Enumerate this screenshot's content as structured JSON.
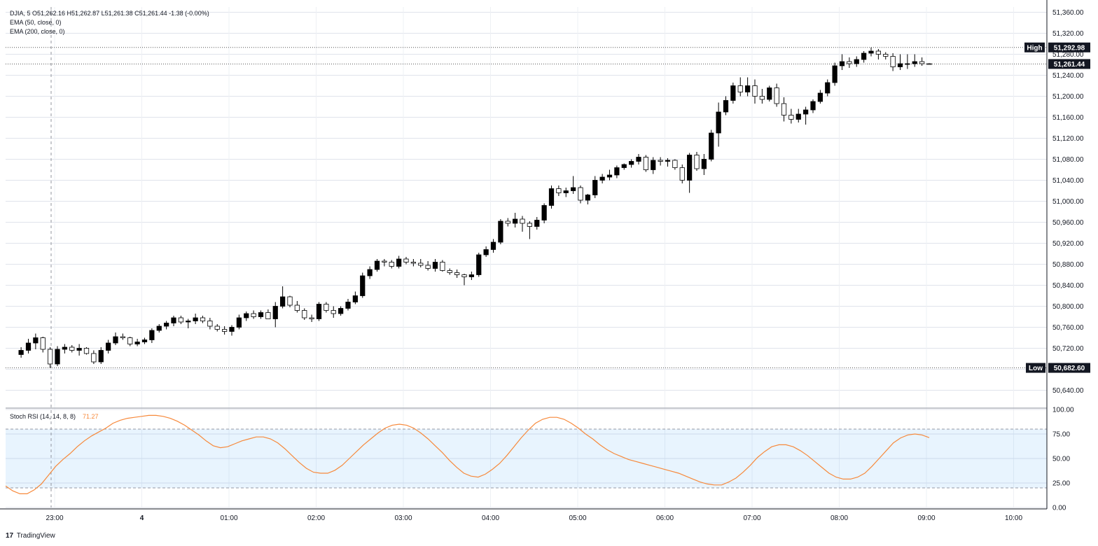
{
  "legend": {
    "symbol_line": "DJIA, 5  O51,262.16  H51,262.87  L51,261.38  C51,261.44  -1.38 (-0.00%)",
    "ema50": "EMA (50, close, 0)",
    "ema200": "EMA (200, close, 0)"
  },
  "branding": {
    "logo": "17",
    "name": "TradingView"
  },
  "chart_data": [
    {
      "type": "candlestick",
      "title": "DJIA, 5",
      "ylim": [
        50610,
        51370
      ],
      "yticks": [
        "51,360.00",
        "51,320.00",
        "51,280.00",
        "51,240.00",
        "51,200.00",
        "51,160.00",
        "51,120.00",
        "51,080.00",
        "51,040.00",
        "51,000.00",
        "50,960.00",
        "50,920.00",
        "50,880.00",
        "50,840.00",
        "50,800.00",
        "50,760.00",
        "50,720.00",
        "50,680.00",
        "50,640.00"
      ],
      "xticks": [
        "23:00",
        "4",
        "01:00",
        "02:00",
        "03:00",
        "04:00",
        "05:00",
        "06:00",
        "07:00",
        "08:00",
        "09:00",
        "10:00"
      ],
      "high_label": "High",
      "high_value": "51,292.98",
      "last_value": "51,261.44",
      "low_label": "Low",
      "low_value": "50,682.60",
      "ohlc": [
        [
          50708,
          50722,
          50702,
          50716
        ],
        [
          50716,
          50738,
          50710,
          50730
        ],
        [
          50730,
          50748,
          50718,
          50740
        ],
        [
          50740,
          50742,
          50712,
          50718
        ],
        [
          50718,
          50722,
          50682,
          50690
        ],
        [
          50690,
          50724,
          50686,
          50718
        ],
        [
          50718,
          50728,
          50710,
          50722
        ],
        [
          50722,
          50726,
          50712,
          50716
        ],
        [
          50716,
          50728,
          50706,
          50720
        ],
        [
          50720,
          50722,
          50708,
          50710
        ],
        [
          50710,
          50716,
          50690,
          50694
        ],
        [
          50694,
          50722,
          50690,
          50716
        ],
        [
          50716,
          50736,
          50710,
          50730
        ],
        [
          50730,
          50750,
          50726,
          50742
        ],
        [
          50742,
          50748,
          50736,
          50740
        ],
        [
          50740,
          50742,
          50724,
          50728
        ],
        [
          50728,
          50738,
          50724,
          50732
        ],
        [
          50732,
          50740,
          50728,
          50736
        ],
        [
          50736,
          50758,
          50730,
          50754
        ],
        [
          50754,
          50766,
          50750,
          50762
        ],
        [
          50762,
          50772,
          50756,
          50768
        ],
        [
          50768,
          50782,
          50762,
          50778
        ],
        [
          50778,
          50782,
          50766,
          50770
        ],
        [
          50770,
          50776,
          50758,
          50772
        ],
        [
          50772,
          50786,
          50766,
          50778
        ],
        [
          50778,
          50782,
          50768,
          50772
        ],
        [
          50772,
          50778,
          50756,
          50762
        ],
        [
          50762,
          50766,
          50752,
          50756
        ],
        [
          50756,
          50762,
          50746,
          50752
        ],
        [
          50752,
          50764,
          50744,
          50760
        ],
        [
          50760,
          50784,
          50756,
          50778
        ],
        [
          50778,
          50790,
          50772,
          50786
        ],
        [
          50786,
          50792,
          50776,
          50780
        ],
        [
          50780,
          50792,
          50776,
          50788
        ],
        [
          50788,
          50794,
          50782,
          50776
        ],
        [
          50776,
          50808,
          50760,
          50800
        ],
        [
          50800,
          50838,
          50796,
          50818
        ],
        [
          50818,
          50820,
          50798,
          50802
        ],
        [
          50802,
          50810,
          50788,
          50792
        ],
        [
          50792,
          50796,
          50774,
          50778
        ],
        [
          50778,
          50784,
          50770,
          50776
        ],
        [
          50776,
          50808,
          50772,
          50804
        ],
        [
          50804,
          50808,
          50788,
          50792
        ],
        [
          50792,
          50800,
          50778,
          50786
        ],
        [
          50786,
          50800,
          50782,
          50796
        ],
        [
          50796,
          50814,
          50792,
          50808
        ],
        [
          50808,
          50828,
          50804,
          50820
        ],
        [
          50820,
          50864,
          50816,
          50858
        ],
        [
          50858,
          50876,
          50852,
          50870
        ],
        [
          50870,
          50890,
          50866,
          50886
        ],
        [
          50886,
          50890,
          50876,
          50884
        ],
        [
          50884,
          50888,
          50872,
          50876
        ],
        [
          50876,
          50896,
          50872,
          50890
        ],
        [
          50890,
          50894,
          50880,
          50884
        ],
        [
          50884,
          50890,
          50876,
          50882
        ],
        [
          50882,
          50890,
          50874,
          50878
        ],
        [
          50878,
          50886,
          50868,
          50872
        ],
        [
          50872,
          50890,
          50866,
          50884
        ],
        [
          50884,
          50888,
          50866,
          50868
        ],
        [
          50868,
          50872,
          50860,
          50864
        ],
        [
          50864,
          50870,
          50854,
          50860
        ],
        [
          50860,
          50862,
          50840,
          50856
        ],
        [
          50856,
          50866,
          50850,
          50860
        ],
        [
          50860,
          50902,
          50856,
          50898
        ],
        [
          50898,
          50914,
          50894,
          50908
        ],
        [
          50908,
          50928,
          50902,
          50922
        ],
        [
          50922,
          50966,
          50918,
          50962
        ],
        [
          50962,
          50968,
          50952,
          50958
        ],
        [
          50958,
          50978,
          50950,
          50966
        ],
        [
          50966,
          50972,
          50942,
          50958
        ],
        [
          50958,
          50962,
          50928,
          50952
        ],
        [
          50952,
          50970,
          50946,
          50964
        ],
        [
          50964,
          50996,
          50958,
          50992
        ],
        [
          50992,
          51030,
          50986,
          51024
        ],
        [
          51024,
          51030,
          51010,
          51016
        ],
        [
          51016,
          51026,
          51008,
          51020
        ],
        [
          51020,
          51048,
          51014,
          51026
        ],
        [
          51026,
          51030,
          50996,
          51002
        ],
        [
          51002,
          51014,
          50994,
          51012
        ],
        [
          51012,
          51048,
          51006,
          51040
        ],
        [
          51040,
          51052,
          51034,
          51046
        ],
        [
          51046,
          51060,
          51040,
          51050
        ],
        [
          51050,
          51068,
          51044,
          51064
        ],
        [
          51064,
          51072,
          51060,
          51070
        ],
        [
          51070,
          51080,
          51064,
          51076
        ],
        [
          51076,
          51090,
          51070,
          51084
        ],
        [
          51084,
          51088,
          51056,
          51060
        ],
        [
          51060,
          51084,
          51052,
          51078
        ],
        [
          51078,
          51084,
          51068,
          51076
        ],
        [
          51076,
          51082,
          51066,
          51078
        ],
        [
          51078,
          51080,
          51060,
          51064
        ],
        [
          51064,
          51070,
          51034,
          51040
        ],
        [
          51040,
          51092,
          51016,
          51088
        ],
        [
          51088,
          51094,
          51058,
          51062
        ],
        [
          51062,
          51090,
          51050,
          51080
        ],
        [
          51080,
          51136,
          51076,
          51130
        ],
        [
          51130,
          51188,
          51104,
          51170
        ],
        [
          51170,
          51200,
          51164,
          51192
        ],
        [
          51192,
          51226,
          51186,
          51220
        ],
        [
          51220,
          51236,
          51200,
          51208
        ],
        [
          51208,
          51236,
          51200,
          51220
        ],
        [
          51220,
          51232,
          51186,
          51200
        ],
        [
          51200,
          51214,
          51186,
          51194
        ],
        [
          51194,
          51220,
          51190,
          51216
        ],
        [
          51216,
          51224,
          51180,
          51186
        ],
        [
          51186,
          51198,
          51152,
          51164
        ],
        [
          51164,
          51176,
          51148,
          51156
        ],
        [
          51156,
          51176,
          51150,
          51166
        ],
        [
          51166,
          51180,
          51146,
          51174
        ],
        [
          51174,
          51194,
          51168,
          51190
        ],
        [
          51190,
          51212,
          51186,
          51206
        ],
        [
          51206,
          51232,
          51200,
          51226
        ],
        [
          51226,
          51264,
          51220,
          51258
        ],
        [
          51258,
          51280,
          51250,
          51266
        ],
        [
          51266,
          51274,
          51254,
          51262
        ],
        [
          51262,
          51276,
          51256,
          51270
        ],
        [
          51270,
          51286,
          51264,
          51282
        ],
        [
          51282,
          51293,
          51276,
          51286
        ],
        [
          51286,
          51290,
          51270,
          51280
        ],
        [
          51280,
          51284,
          51270,
          51276
        ],
        [
          51276,
          51282,
          51248,
          51256
        ],
        [
          51256,
          51280,
          51250,
          51262
        ],
        [
          51262,
          51280,
          51252,
          51262
        ],
        [
          51262,
          51280,
          51256,
          51266
        ],
        [
          51266,
          51274,
          51258,
          51262
        ],
        [
          51262,
          51263,
          51261,
          51261.44
        ]
      ]
    },
    {
      "type": "line",
      "title": "Stoch RSI (14, 14, 8, 8)",
      "last_value": "71.27",
      "ylim": [
        0,
        100
      ],
      "yticks": [
        "100.00",
        "75.00",
        "50.00",
        "25.00",
        "0.00"
      ],
      "band": [
        20,
        80
      ],
      "values": [
        22,
        17,
        14,
        14,
        18,
        24,
        33,
        42,
        49,
        55,
        62,
        68,
        73,
        77,
        81,
        86,
        89,
        91,
        92,
        93,
        94,
        94,
        93,
        91,
        88,
        84,
        79,
        74,
        68,
        63,
        61,
        62,
        65,
        68,
        70,
        72,
        72,
        70,
        66,
        60,
        53,
        46,
        40,
        36,
        35,
        35,
        38,
        43,
        50,
        57,
        64,
        70,
        76,
        81,
        84,
        85,
        84,
        81,
        76,
        70,
        63,
        56,
        48,
        41,
        35,
        32,
        31,
        34,
        39,
        45,
        53,
        62,
        71,
        79,
        86,
        90,
        92,
        92,
        90,
        86,
        81,
        75,
        70,
        64,
        59,
        55,
        52,
        49,
        47,
        45,
        43,
        41,
        39,
        37,
        35,
        32,
        29,
        26,
        24,
        23,
        23,
        26,
        30,
        36,
        43,
        51,
        57,
        62,
        64,
        64,
        62,
        58,
        53,
        47,
        41,
        35,
        31,
        29,
        29,
        31,
        35,
        42,
        50,
        58,
        66,
        71,
        74,
        75,
        74,
        71.27
      ]
    }
  ]
}
